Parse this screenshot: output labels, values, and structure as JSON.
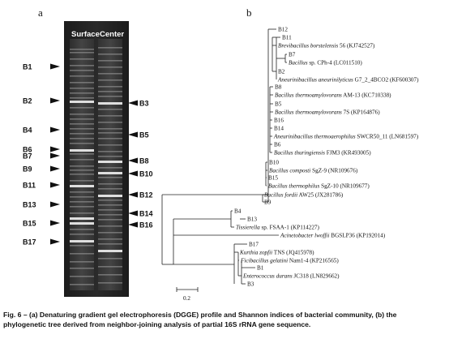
{
  "panel_a": {
    "letter": "a",
    "lane_labels": [
      "Surface",
      "Center"
    ],
    "left_markers": [
      "B1",
      "B2",
      "B4",
      "B6",
      "B7",
      "B9",
      "B11",
      "B13",
      "B15",
      "B17"
    ],
    "right_markers": [
      "B3",
      "B5",
      "B8",
      "B10",
      "B12",
      "B14",
      "B16"
    ]
  },
  "panel_b": {
    "letter": "b",
    "tree_labels": [
      {
        "id": "t1",
        "plain": "B12",
        "italic": "",
        "rest": ""
      },
      {
        "id": "t2",
        "plain": "B11",
        "italic": "",
        "rest": ""
      },
      {
        "id": "t3",
        "plain": "",
        "italic": "Brevibacillus borstelensis",
        "rest": " 56 (KJ742527)"
      },
      {
        "id": "t4",
        "plain": "B7",
        "italic": "",
        "rest": ""
      },
      {
        "id": "t5",
        "plain": "",
        "italic": "Bacillus",
        "rest": " sp. CPh-4 (LC011510)"
      },
      {
        "id": "t6",
        "plain": "B2",
        "italic": "",
        "rest": ""
      },
      {
        "id": "t7",
        "plain": "",
        "italic": "Aneurinibacillus aneurinilyticus",
        "rest": " G7_2_4BCO2 (KF600307)"
      },
      {
        "id": "t8",
        "plain": "B8",
        "italic": "",
        "rest": ""
      },
      {
        "id": "t9",
        "plain": "",
        "italic": "Bacillus thermoamylovorans",
        "rest": " AM-13 (KC710338)"
      },
      {
        "id": "t10",
        "plain": "B5",
        "italic": "",
        "rest": ""
      },
      {
        "id": "t11",
        "plain": "",
        "italic": "Bacillus thermoamylovorans",
        "rest": " 7S (KP164876)"
      },
      {
        "id": "t12",
        "plain": "B16",
        "italic": "",
        "rest": ""
      },
      {
        "id": "t13",
        "plain": "B14",
        "italic": "",
        "rest": ""
      },
      {
        "id": "t14",
        "plain": "",
        "italic": "Aneurinibacillus thermoaerophilus",
        "rest": " SWCR50_11 (LN681597)"
      },
      {
        "id": "t15",
        "plain": "B6",
        "italic": "",
        "rest": ""
      },
      {
        "id": "t16",
        "plain": "",
        "italic": "Bacillus thuringiensis",
        "rest": " FJM3 (KR493005)"
      },
      {
        "id": "t17",
        "plain": "B10",
        "italic": "",
        "rest": ""
      },
      {
        "id": "t18",
        "plain": "",
        "italic": "Bacillus composti",
        "rest": " SgZ-9 (NR109676)"
      },
      {
        "id": "t19",
        "plain": "B15",
        "italic": "",
        "rest": ""
      },
      {
        "id": "t20",
        "plain": "",
        "italic": "Bacillus thermophilus",
        "rest": " SgZ-10 (NR109677)"
      },
      {
        "id": "t21",
        "plain": "",
        "italic": "Bacillus fordii",
        "rest": " AW25 (JX281786)"
      },
      {
        "id": "t22",
        "plain": "B9",
        "italic": "",
        "rest": ""
      },
      {
        "id": "t23",
        "plain": "B4",
        "italic": "",
        "rest": ""
      },
      {
        "id": "t24",
        "plain": "B13",
        "italic": "",
        "rest": ""
      },
      {
        "id": "t25",
        "plain": "",
        "italic": "Tissierella",
        "rest": " sp. FSAA-1 (KP114227)"
      },
      {
        "id": "t26",
        "plain": "",
        "italic": "Acinetobacter lwoffii",
        "rest": " BGSLP36 (KP192014)"
      },
      {
        "id": "t27",
        "plain": "B17",
        "italic": "",
        "rest": ""
      },
      {
        "id": "t28",
        "plain": "",
        "italic": "Kurthia zopfii",
        "rest": " TNS (JQ415978)"
      },
      {
        "id": "t29",
        "plain": "",
        "italic": "Ficibacillus gelatini",
        "rest": " Nam1-4 (KP216565)"
      },
      {
        "id": "t30",
        "plain": "B1",
        "italic": "",
        "rest": ""
      },
      {
        "id": "t31",
        "plain": "",
        "italic": "Enterococcus durans",
        "rest": " JC318 (LN829662)"
      },
      {
        "id": "t32",
        "plain": "B3",
        "italic": "",
        "rest": ""
      }
    ],
    "scale_label": "0.2"
  },
  "caption": {
    "line1": "Fig. 6 – (a) Denaturing gradient gel electrophoresis (DGGE) profile and Shannon indices of bacterial community, (b) the",
    "line2": "phylogenetic tree derived from neighbor-joining analysis of partial 16S rRNA gene sequence."
  }
}
